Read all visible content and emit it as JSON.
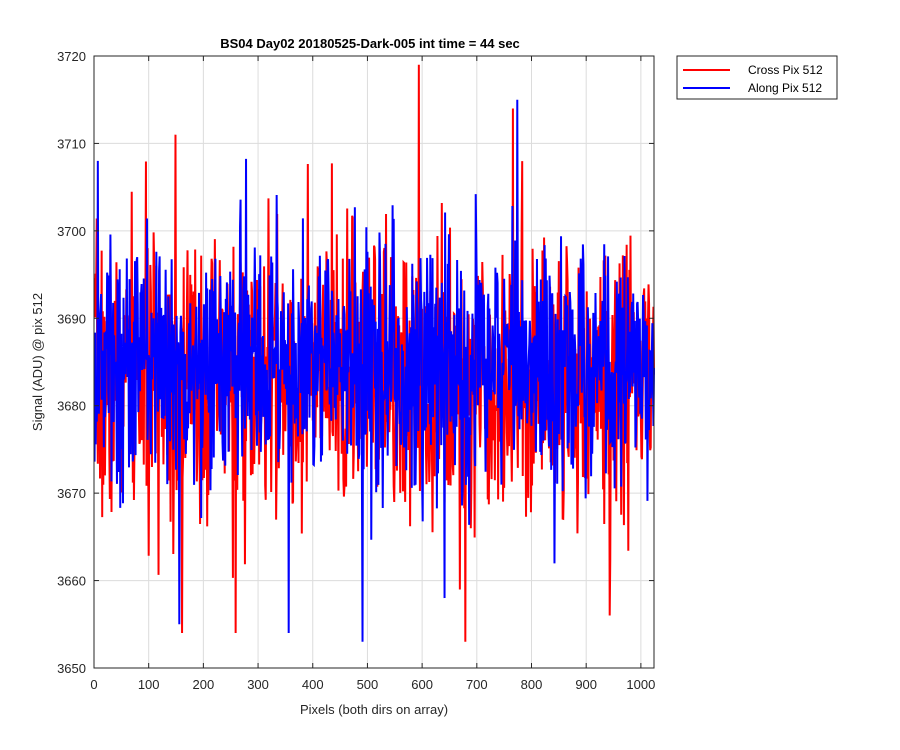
{
  "chart_data": {
    "type": "line",
    "title": "BS04 Day02 20180525-Dark-005 int time = 44 sec",
    "xlabel": "Pixels (both dirs on array)",
    "ylabel": "Signal (ADU) @ pix 512",
    "xlim": [
      0,
      1024
    ],
    "ylim": [
      3650,
      3720
    ],
    "x_ticks": [
      0,
      100,
      200,
      300,
      400,
      500,
      600,
      700,
      800,
      900,
      1000
    ],
    "y_ticks": [
      3650,
      3660,
      3670,
      3680,
      3690,
      3700,
      3710,
      3720
    ],
    "grid": true,
    "legend_position": "outside-top-right",
    "series": [
      {
        "name": "Cross Pix 512",
        "color": "#ff0000",
        "stats": {
          "mean": 3683,
          "std": 8,
          "min": 3653,
          "max": 3719,
          "n": 1024,
          "seed": 7
        },
        "spikes": [
          {
            "x": 148,
            "y": 3711
          },
          {
            "x": 593,
            "y": 3719
          },
          {
            "x": 160,
            "y": 3654
          },
          {
            "x": 258,
            "y": 3654
          },
          {
            "x": 678,
            "y": 3653
          },
          {
            "x": 765,
            "y": 3714
          },
          {
            "x": 942,
            "y": 3656
          }
        ]
      },
      {
        "name": "Along Pix 512",
        "color": "#0000ff",
        "stats": {
          "mean": 3685,
          "std": 7,
          "min": 3653,
          "max": 3715,
          "n": 1024,
          "seed": 13
        },
        "spikes": [
          {
            "x": 6,
            "y": 3708
          },
          {
            "x": 490,
            "y": 3653
          },
          {
            "x": 355,
            "y": 3654
          },
          {
            "x": 773,
            "y": 3715
          },
          {
            "x": 640,
            "y": 3658
          },
          {
            "x": 155,
            "y": 3655
          }
        ]
      }
    ]
  }
}
